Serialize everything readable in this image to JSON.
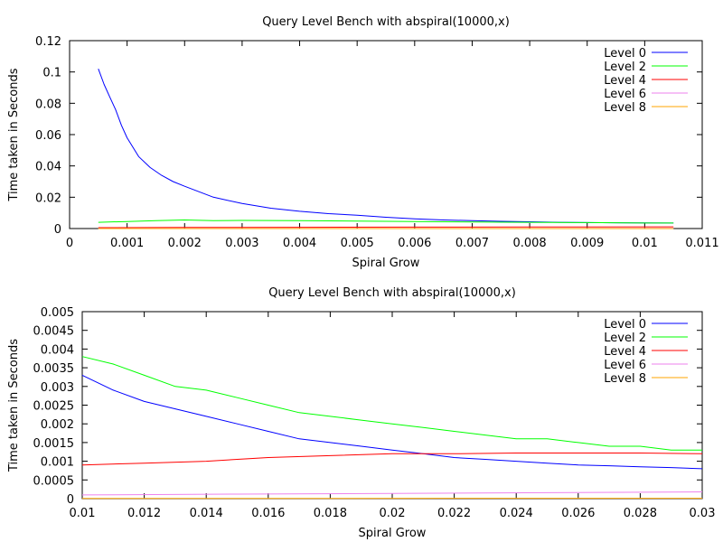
{
  "chart_data": [
    {
      "type": "line",
      "title": "Query Level Bench with abspiral(10000,x)",
      "xlabel": "Spiral Grow",
      "ylabel": "Time taken in Seconds",
      "xlim": [
        0,
        0.011
      ],
      "ylim": [
        0,
        0.12
      ],
      "x_ticks": [
        0,
        0.001,
        0.002,
        0.003,
        0.004,
        0.005,
        0.006,
        0.007,
        0.008,
        0.009,
        0.01,
        0.011
      ],
      "x_tick_labels": [
        "0",
        "0.001",
        "0.002",
        "0.003",
        "0.004",
        "0.005",
        "0.006",
        "0.007",
        "0.008",
        "0.009",
        "0.01",
        "0.011"
      ],
      "y_ticks": [
        0,
        0.02,
        0.04,
        0.06,
        0.08,
        0.1,
        0.12
      ],
      "y_tick_labels": [
        "0",
        "0.02",
        "0.04",
        "0.06",
        "0.08",
        "0.1",
        "0.12"
      ],
      "grid": false,
      "legend_position": "top-right",
      "series": [
        {
          "name": "Level 0",
          "color": "#0000ff",
          "x": [
            0.0005,
            0.0006,
            0.0007,
            0.0008,
            0.0009,
            0.001,
            0.0012,
            0.0014,
            0.0016,
            0.0018,
            0.002,
            0.0025,
            0.003,
            0.0035,
            0.004,
            0.0045,
            0.005,
            0.0055,
            0.006,
            0.0065,
            0.007,
            0.0075,
            0.008,
            0.0085,
            0.009,
            0.0095,
            0.01,
            0.0105
          ],
          "y": [
            0.102,
            0.092,
            0.084,
            0.076,
            0.066,
            0.058,
            0.046,
            0.039,
            0.034,
            0.03,
            0.027,
            0.02,
            0.016,
            0.013,
            0.011,
            0.0095,
            0.0085,
            0.0072,
            0.0062,
            0.0055,
            0.005,
            0.0046,
            0.0043,
            0.004,
            0.0038,
            0.0037,
            0.0036,
            0.0035
          ]
        },
        {
          "name": "Level 2",
          "color": "#00ff00",
          "x": [
            0.0005,
            0.001,
            0.0015,
            0.002,
            0.0025,
            0.003,
            0.004,
            0.005,
            0.006,
            0.007,
            0.008,
            0.009,
            0.01,
            0.0105
          ],
          "y": [
            0.004,
            0.0045,
            0.005,
            0.0055,
            0.005,
            0.0052,
            0.005,
            0.0048,
            0.0045,
            0.0042,
            0.004,
            0.0038,
            0.0035,
            0.0035
          ]
        },
        {
          "name": "Level 4",
          "color": "#ff0000",
          "x": [
            0.0005,
            0.002,
            0.004,
            0.006,
            0.008,
            0.0105
          ],
          "y": [
            0.0006,
            0.0007,
            0.0008,
            0.0009,
            0.001,
            0.0011
          ]
        },
        {
          "name": "Level 6",
          "color": "#ee82ee",
          "x": [
            0.0005,
            0.0105
          ],
          "y": [
            5e-05,
            0.0001
          ]
        },
        {
          "name": "Level 8",
          "color": "#ffa500",
          "x": [
            0.0005,
            0.0105
          ],
          "y": [
            1e-05,
            2e-05
          ]
        }
      ]
    },
    {
      "type": "line",
      "title": "Query Level Bench with abspiral(10000,x)",
      "xlabel": "Spiral Grow",
      "ylabel": "Time taken in Seconds",
      "xlim": [
        0.01,
        0.03
      ],
      "ylim": [
        0,
        0.005
      ],
      "x_ticks": [
        0.01,
        0.012,
        0.014,
        0.016,
        0.018,
        0.02,
        0.022,
        0.024,
        0.026,
        0.028,
        0.03
      ],
      "x_tick_labels": [
        "0.01",
        "0.012",
        "0.014",
        "0.016",
        "0.018",
        "0.02",
        "0.022",
        "0.024",
        "0.026",
        "0.028",
        "0.03"
      ],
      "y_ticks": [
        0,
        0.0005,
        0.001,
        0.0015,
        0.002,
        0.0025,
        0.003,
        0.0035,
        0.004,
        0.0045,
        0.005
      ],
      "y_tick_labels": [
        "0",
        "0.0005",
        "0.001",
        "0.0015",
        "0.002",
        "0.0025",
        "0.003",
        "0.0035",
        "0.004",
        "0.0045",
        "0.005"
      ],
      "grid": false,
      "legend_position": "top-right",
      "series": [
        {
          "name": "Level 0",
          "color": "#0000ff",
          "x": [
            0.01,
            0.0105,
            0.011,
            0.012,
            0.013,
            0.014,
            0.015,
            0.016,
            0.017,
            0.018,
            0.019,
            0.02,
            0.021,
            0.022,
            0.023,
            0.024,
            0.025,
            0.026,
            0.027,
            0.028,
            0.029,
            0.03
          ],
          "y": [
            0.0033,
            0.0031,
            0.0029,
            0.0026,
            0.0024,
            0.0022,
            0.002,
            0.0018,
            0.0016,
            0.0015,
            0.0014,
            0.0013,
            0.0012,
            0.0011,
            0.00105,
            0.001,
            0.00095,
            0.0009,
            0.00088,
            0.00085,
            0.00083,
            0.0008
          ]
        },
        {
          "name": "Level 2",
          "color": "#00ff00",
          "x": [
            0.01,
            0.011,
            0.012,
            0.013,
            0.014,
            0.015,
            0.016,
            0.017,
            0.018,
            0.019,
            0.02,
            0.021,
            0.022,
            0.023,
            0.024,
            0.025,
            0.026,
            0.027,
            0.028,
            0.029,
            0.03
          ],
          "y": [
            0.0038,
            0.0036,
            0.0033,
            0.003,
            0.0029,
            0.0027,
            0.0025,
            0.0023,
            0.0022,
            0.0021,
            0.002,
            0.0019,
            0.0018,
            0.0017,
            0.0016,
            0.0016,
            0.0015,
            0.0014,
            0.0014,
            0.0013,
            0.0013
          ]
        },
        {
          "name": "Level 4",
          "color": "#ff0000",
          "x": [
            0.01,
            0.012,
            0.014,
            0.016,
            0.018,
            0.02,
            0.022,
            0.024,
            0.026,
            0.028,
            0.03
          ],
          "y": [
            0.0009,
            0.00095,
            0.001,
            0.0011,
            0.00115,
            0.0012,
            0.0012,
            0.00122,
            0.00122,
            0.00122,
            0.0012
          ]
        },
        {
          "name": "Level 6",
          "color": "#ee82ee",
          "x": [
            0.01,
            0.015,
            0.02,
            0.025,
            0.03
          ],
          "y": [
            0.0001,
            0.00012,
            0.00014,
            0.00016,
            0.00018
          ]
        },
        {
          "name": "Level 8",
          "color": "#ffa500",
          "x": [
            0.01,
            0.03
          ],
          "y": [
            5e-06,
            1e-05
          ]
        }
      ]
    }
  ]
}
